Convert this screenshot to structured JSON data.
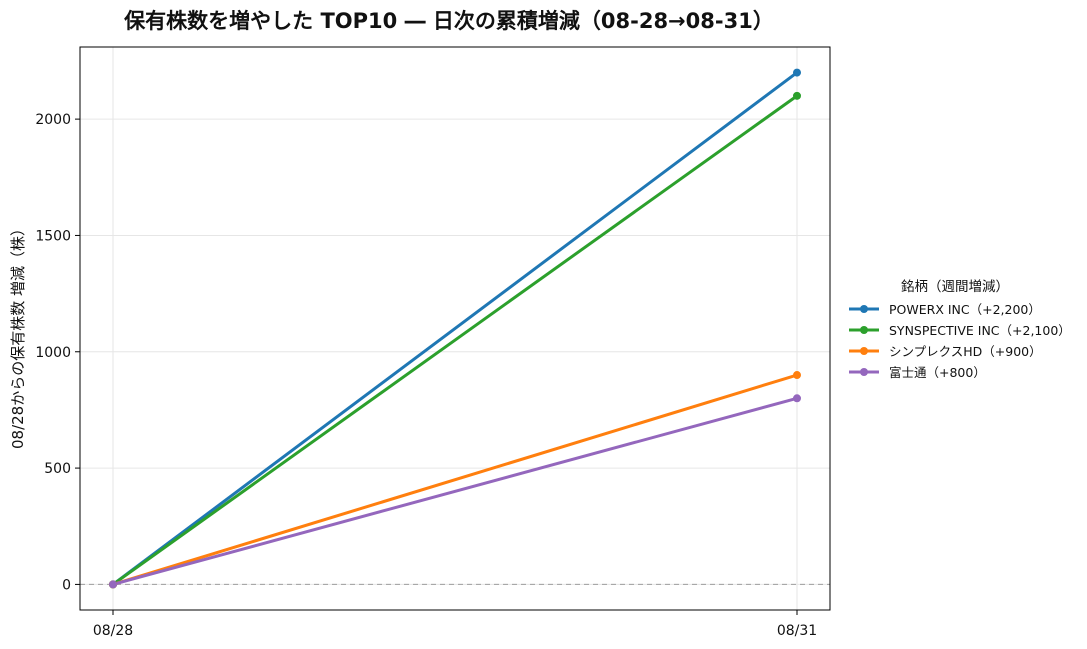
{
  "chart_data": {
    "type": "line",
    "title": "保有株数を増やした TOP10 ― 日次の累積増減（08-28→08-31）",
    "xlabel": "",
    "ylabel": "08/28からの保有株数 増減（株）",
    "x": [
      "08/28",
      "08/31"
    ],
    "yticks": [
      0,
      500,
      1000,
      1500,
      2000
    ],
    "ylim": [
      -110,
      2310
    ],
    "grid": true,
    "zero_line": true,
    "legend": {
      "title": "銘柄（週間増減）",
      "placement": "outside-right"
    },
    "series": [
      {
        "name": "POWERX INC（+2,200）",
        "color": "#1f77b4",
        "values": [
          0,
          2200
        ]
      },
      {
        "name": "SYNSPECTIVE INC（+2,100）",
        "color": "#2ca02c",
        "values": [
          0,
          2100
        ]
      },
      {
        "name": "シンプレクスHD（+900）",
        "color": "#ff7f0e",
        "values": [
          0,
          900
        ]
      },
      {
        "name": "富士通（+800）",
        "color": "#9467bd",
        "values": [
          0,
          800
        ]
      }
    ]
  }
}
